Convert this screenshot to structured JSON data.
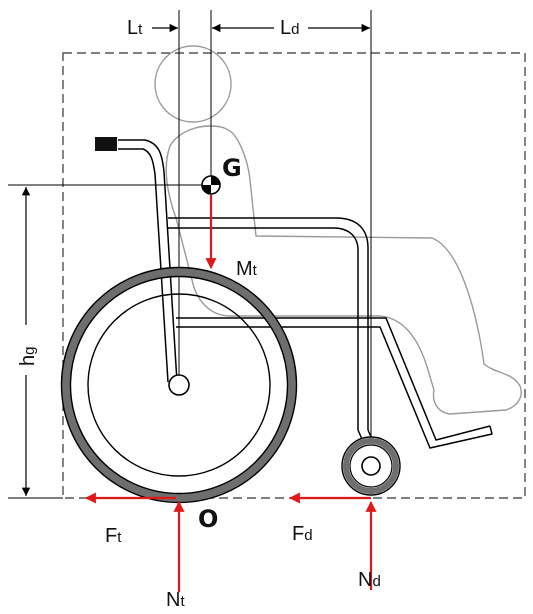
{
  "labels": {
    "lt_main": "L",
    "lt_sub": "t",
    "ld_main": "L",
    "ld_sub": "d",
    "g": "G",
    "mt_main": "M",
    "mt_sub": "t",
    "hg_main": "h",
    "hg_sub": "g",
    "o": "O",
    "ft_main": "F",
    "ft_sub": "t",
    "fd_main": "F",
    "fd_sub": "d",
    "nt_main": "N",
    "nt_sub": "t",
    "nd_main": "N",
    "nd_sub": "d"
  },
  "colors": {
    "line": "#000000",
    "person": "#9a9a9a",
    "force": "#e01818",
    "tire": "#6e6e6e",
    "dash": "#333333"
  }
}
